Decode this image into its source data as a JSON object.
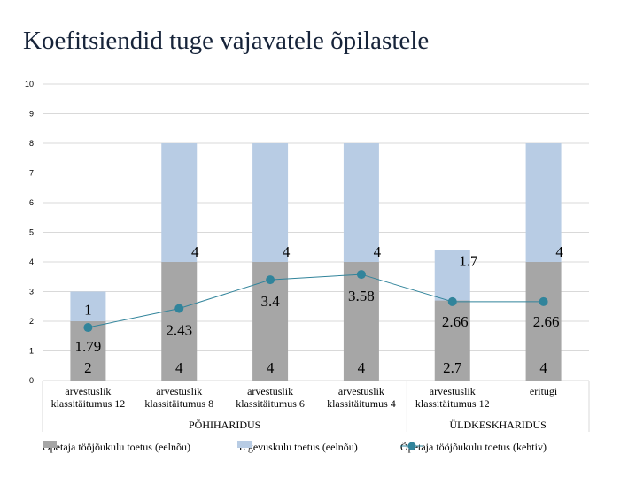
{
  "title": "Koefitsiendid tuge vajavatele õpilastele",
  "chart_data": {
    "type": "bar",
    "stacked": true,
    "ylim": [
      0,
      10
    ],
    "yticks": [
      "0",
      "1",
      "2",
      "3",
      "4",
      "5",
      "6",
      "7",
      "8",
      "9",
      "10"
    ],
    "grid": true,
    "legend_position": "bottom",
    "categories": [
      "arvestuslik klassitäitumus 12",
      "arvestuslik klassitäitumus 8",
      "arvestuslik klassitäitumus 6",
      "arvestuslik klassitäitumus 4",
      "arvestuslik klassitäitumus 12",
      "eritugi"
    ],
    "groups": [
      {
        "label": "PÕHIHARIDUS",
        "start": 0,
        "end": 3
      },
      {
        "label": "ÜLDKESKHARIDUS",
        "start": 4,
        "end": 5
      }
    ],
    "series": [
      {
        "name": "Õpetaja tööjõukulu toetus (eelnõu)",
        "type": "bar",
        "color": "#a6a6a6",
        "values": [
          2,
          4,
          4,
          4,
          2.7,
          4
        ],
        "labels": [
          "2",
          "4",
          "4",
          "4",
          "2.7",
          "4"
        ]
      },
      {
        "name": "Tegevuskulu toetus (eelnõu)",
        "type": "bar",
        "color": "#b8cce4",
        "values": [
          1,
          4,
          4,
          4,
          1.7,
          4
        ],
        "labels": [
          "1",
          "4",
          "4",
          "4",
          "1.7",
          "4"
        ]
      },
      {
        "name": "Õpetaja tööjõukulu toetus (kehtiv)",
        "type": "line",
        "color": "#31849b",
        "values": [
          1.79,
          2.43,
          3.4,
          3.58,
          2.66,
          2.66
        ],
        "labels": [
          "1.79",
          "2.43",
          "3.4",
          "3.58",
          "2.66",
          "2.66"
        ]
      }
    ]
  }
}
